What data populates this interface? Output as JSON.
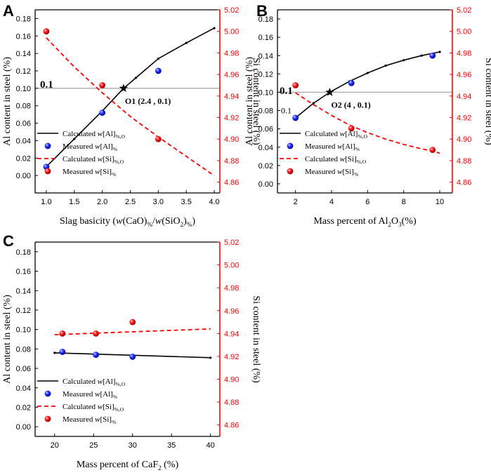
{
  "colors": {
    "left_axis": "#000000",
    "right_axis": "#ff0000",
    "calc_al": "#000000",
    "calc_si": "#ff0000",
    "measured_al": "#1a1aff",
    "measured_si": "#ff1010",
    "guide_line": "#a0a0a0"
  },
  "chart_data": [
    {
      "panel_label": "A",
      "type": "line",
      "xlabel": {
        "pre": "Slag basicity (",
        "i1": "w",
        "mid": "(CaO)",
        "sub1": "%",
        "slash": "/",
        "i2": "w",
        "mid2": "(SiO",
        "sub2": "2",
        "close": ")",
        "sub3": "%",
        "end": ")"
      },
      "ylabel_left": "Al content in steel (%)",
      "ylabel_right": "Si content in steel (%)",
      "xlim": [
        0.8,
        4.1
      ],
      "ylim_left": [
        -0.02,
        0.19
      ],
      "ylim_right": [
        4.85,
        5.02
      ],
      "xticks": [
        "1.0",
        "1.5",
        "2.0",
        "2.5",
        "3.0",
        "3.5",
        "4.0"
      ],
      "xtick_values": [
        1.0,
        1.5,
        2.0,
        2.5,
        3.0,
        3.5,
        4.0
      ],
      "yticks_left": [
        "0.00",
        "0.02",
        "0.04",
        "0.06",
        "0.08",
        "0.10",
        "0.12",
        "0.14",
        "0.16",
        "0.18"
      ],
      "yticks_right": [
        "4.86",
        "4.88",
        "4.90",
        "4.92",
        "4.94",
        "4.96",
        "4.98",
        "5.00",
        "5.02"
      ],
      "ref_line": {
        "value": 0.1,
        "label": "0.1"
      },
      "intersection": {
        "x": 2.38,
        "y": 0.1,
        "label": "O1 (2.4 , 0.1)"
      },
      "series": [
        {
          "name": "Calculated w[Al]%,O",
          "axis": "left",
          "kind": "line",
          "x": [
            1.0,
            1.5,
            2.0,
            2.38,
            2.6,
            3.0,
            3.5,
            4.0
          ],
          "values": [
            0.01,
            0.042,
            0.074,
            0.1,
            0.112,
            0.134,
            0.152,
            0.169
          ]
        },
        {
          "name": "Measured w[Al]%",
          "axis": "left",
          "kind": "points",
          "x": [
            1.0,
            2.0,
            3.0
          ],
          "values": [
            0.01,
            0.072,
            0.12
          ]
        },
        {
          "name": "Calculated w[Si]%,O",
          "axis": "right",
          "kind": "dashed",
          "x": [
            1.0,
            1.5,
            2.0,
            2.5,
            3.0,
            3.5,
            4.0
          ],
          "values": [
            4.994,
            4.967,
            4.943,
            4.921,
            4.902,
            4.884,
            4.866
          ]
        },
        {
          "name": "Measured w[Si]%",
          "axis": "right",
          "kind": "points",
          "x": [
            1.0,
            2.0,
            3.0
          ],
          "values": [
            5.0,
            4.95,
            4.9
          ]
        }
      ],
      "legend": [
        {
          "kind": "line",
          "pre": "Calculated ",
          "v": "w",
          "bracket": "[Al]",
          "sub": "%,O"
        },
        {
          "kind": "al",
          "pre": "Measured  ",
          "v": "w",
          "bracket": "[Al]",
          "sub": "%"
        },
        {
          "kind": "dashed",
          "pre": "Calculated ",
          "v": "w",
          "bracket": "[Si]",
          "sub": "%,O"
        },
        {
          "kind": "si",
          "pre": "Measured  ",
          "v": "w",
          "bracket": "[Si]",
          "sub": "%"
        }
      ]
    },
    {
      "panel_label": "B",
      "type": "line",
      "xlabel": {
        "pre": "Mass percent of Al",
        "sub1": "2",
        "mid": "O",
        "sub2": "3",
        "end": "(%)"
      },
      "ylabel_left": "Al content in steel (%)",
      "ylabel_right": "Si content in steel (%)",
      "xlim": [
        1.0,
        10.7
      ],
      "ylim_left": [
        -0.01,
        0.19
      ],
      "ylim_right": [
        4.85,
        5.02
      ],
      "xticks": [
        "2",
        "4",
        "6",
        "8",
        "10"
      ],
      "xtick_values": [
        2,
        4,
        6,
        8,
        10
      ],
      "yticks_left": [
        "0.00",
        "0.02",
        "0.04",
        "0.06",
        "0.08",
        "0.10",
        "0.12",
        "0.14",
        "0.16",
        "0.18"
      ],
      "yticks_right": [
        "4.86",
        "4.88",
        "4.90",
        "4.92",
        "4.94",
        "4.96",
        "4.98",
        "5.00",
        "5.02"
      ],
      "ref_line": {
        "value": 0.1,
        "label": "0.1"
      },
      "inner_label": "0.1",
      "intersection": {
        "x": 3.9,
        "y": 0.1,
        "label": "O2 (4 , 0.1)"
      },
      "series": [
        {
          "name": "Calculated w[Al]%,O",
          "axis": "left",
          "kind": "line",
          "x": [
            2,
            3,
            3.9,
            5,
            6,
            7,
            8,
            9,
            10
          ],
          "values": [
            0.072,
            0.088,
            0.1,
            0.112,
            0.121,
            0.129,
            0.135,
            0.14,
            0.144
          ]
        },
        {
          "name": "Measured w[Al]%",
          "axis": "left",
          "kind": "points",
          "x": [
            2,
            5.1,
            9.6
          ],
          "values": [
            0.072,
            0.11,
            0.14
          ]
        },
        {
          "name": "Calculated w[Si]%,O",
          "axis": "right",
          "kind": "dashed",
          "x": [
            2,
            3,
            4,
            5,
            6,
            7,
            8,
            9,
            10
          ],
          "values": [
            4.943,
            4.932,
            4.922,
            4.913,
            4.906,
            4.9,
            4.895,
            4.891,
            4.887
          ]
        },
        {
          "name": "Measured w[Si]%",
          "axis": "right",
          "kind": "points",
          "x": [
            2,
            5.1,
            9.6
          ],
          "values": [
            4.95,
            4.91,
            4.89
          ]
        }
      ],
      "legend": [
        {
          "kind": "line",
          "pre": "Calculated ",
          "v": "w",
          "bracket": "[Al]",
          "sub": "%,O"
        },
        {
          "kind": "al",
          "pre": "Measured  ",
          "v": "w",
          "bracket": "[Al]",
          "sub": "%"
        },
        {
          "kind": "dashed",
          "pre": "Calculated ",
          "v": "w",
          "bracket": "[Si]",
          "sub": "%,O"
        },
        {
          "kind": "si",
          "pre": "Measured  ",
          "v": "w",
          "bracket": "[Si]",
          "sub": "%"
        }
      ]
    },
    {
      "panel_label": "C",
      "type": "line",
      "xlabel": {
        "pre": "Mass percent of CaF",
        "sub1": "2",
        "end": " (%)"
      },
      "ylabel_left": "Al content in steel (%)",
      "ylabel_right": "Si content in steel (%)",
      "xlim": [
        17.5,
        41.2
      ],
      "ylim_left": [
        -0.01,
        0.19
      ],
      "ylim_right": [
        4.85,
        5.02
      ],
      "xticks": [
        "20",
        "25",
        "30",
        "35",
        "40"
      ],
      "xtick_values": [
        20,
        25,
        30,
        35,
        40
      ],
      "yticks_left": [
        "0.00",
        "0.02",
        "0.04",
        "0.06",
        "0.08",
        "0.10",
        "0.12",
        "0.14",
        "0.16",
        "0.18"
      ],
      "yticks_right": [
        "4.86",
        "4.88",
        "4.90",
        "4.92",
        "4.94",
        "4.96",
        "4.98",
        "5.00",
        "5.02"
      ],
      "series": [
        {
          "name": "Calculated w[Al]%,O",
          "axis": "left",
          "kind": "line",
          "x": [
            20,
            40
          ],
          "values": [
            0.076,
            0.071
          ]
        },
        {
          "name": "Measured w[Al]%",
          "axis": "left",
          "kind": "points",
          "x": [
            21,
            25.3,
            30
          ],
          "values": [
            0.077,
            0.074,
            0.072
          ]
        },
        {
          "name": "Calculated w[Si]%,O",
          "axis": "right",
          "kind": "dashed",
          "x": [
            20,
            40
          ],
          "values": [
            4.939,
            4.944
          ]
        },
        {
          "name": "Measured w[Si]%",
          "axis": "right",
          "kind": "points",
          "x": [
            21,
            25.3,
            30
          ],
          "values": [
            4.94,
            4.94,
            4.95
          ]
        }
      ],
      "legend": [
        {
          "kind": "line",
          "pre": "Calculated ",
          "v": "w",
          "bracket": "[Al]",
          "sub": "%,O"
        },
        {
          "kind": "al",
          "pre": "Measured  ",
          "v": "w",
          "bracket": "[Al]",
          "sub": "%"
        },
        {
          "kind": "dashed",
          "pre": "Calculated ",
          "v": "w",
          "bracket": "[Si]",
          "sub": "%,O"
        },
        {
          "kind": "si",
          "pre": "Measured  ",
          "v": "w",
          "bracket": "[Si]",
          "sub": "%"
        }
      ]
    }
  ]
}
